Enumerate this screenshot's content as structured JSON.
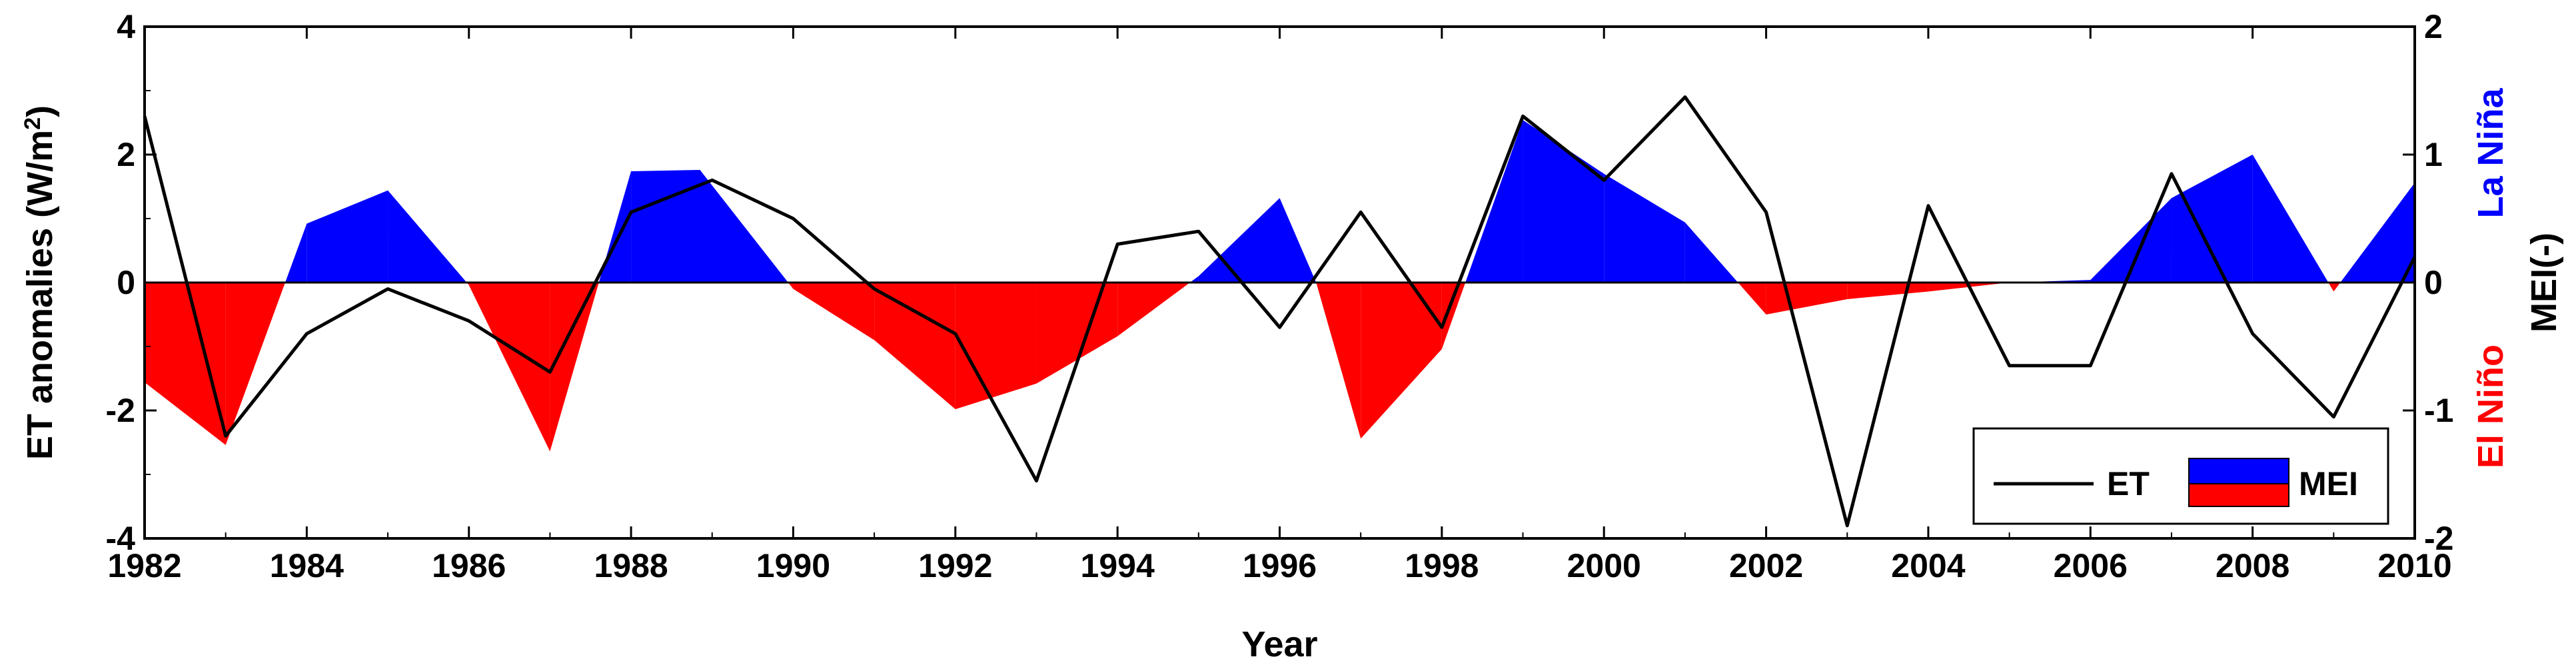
{
  "chart_data": {
    "type": "area",
    "xlabel": "Year",
    "ylabel_left_base": "ET anomalies (W/m",
    "ylabel_left_sup": "2",
    "ylabel_left_end": ")",
    "ylabel_right": "MEI(-)",
    "right_side_labels": {
      "la_nina": "La Niña",
      "el_nino": "El Niño"
    },
    "xlim": [
      1982,
      2010
    ],
    "ylim_left": [
      -4,
      4
    ],
    "ylim_right": [
      -2,
      2
    ],
    "x_ticks": [
      "1982",
      "1984",
      "1986",
      "1988",
      "1990",
      "1992",
      "1994",
      "1996",
      "1998",
      "2000",
      "2002",
      "2004",
      "2006",
      "2008",
      "2010"
    ],
    "y_left_ticks": [
      "4",
      "2",
      "0",
      "-2",
      "-4"
    ],
    "y_right_ticks": [
      "2",
      "1",
      "0",
      "-1",
      "-2"
    ],
    "series": [
      {
        "name": "ET",
        "axis": "left",
        "color": "#000000",
        "x": [
          1982,
          1983,
          1984,
          1985,
          1986,
          1987,
          1988,
          1989,
          1990,
          1991,
          1992,
          1993,
          1994,
          1995,
          1996,
          1997,
          1998,
          1999,
          2000,
          2001,
          2002,
          2003,
          2004,
          2005,
          2006,
          2007,
          2008,
          2009,
          2010
        ],
        "values": [
          2.6,
          -2.4,
          -0.8,
          -0.1,
          -0.6,
          -1.4,
          1.1,
          1.6,
          1.0,
          -0.1,
          -0.8,
          -3.1,
          0.6,
          0.8,
          -0.7,
          1.1,
          -0.7,
          2.6,
          1.6,
          2.9,
          1.1,
          -3.8,
          1.2,
          -1.3,
          -1.3,
          1.7,
          -0.8,
          -2.1,
          0.4
        ]
      },
      {
        "name": "MEI",
        "axis": "right",
        "color_positive": "#0000ff",
        "color_negative": "#ff0000",
        "x": [
          1982,
          1983,
          1984,
          1985,
          1986,
          1987,
          1988,
          1988.85,
          1990,
          1991,
          1992,
          1993,
          1994,
          1995,
          1996,
          1996.45,
          1997,
          1998,
          1999,
          2000,
          2001,
          2002,
          2003,
          2004,
          2005,
          2006,
          2007,
          2008,
          2009,
          2010
        ],
        "values": [
          -0.78,
          -1.27,
          0.46,
          0.72,
          -0.02,
          -1.32,
          0.87,
          0.88,
          -0.05,
          -0.45,
          -0.99,
          -0.79,
          -0.42,
          0.05,
          0.66,
          0.0,
          -1.22,
          -0.52,
          1.27,
          0.85,
          0.47,
          -0.25,
          -0.13,
          -0.07,
          0.0,
          0.02,
          0.66,
          1.0,
          -0.07,
          0.78
        ]
      }
    ],
    "legend": {
      "position": "bottom-right",
      "et_label": "ET",
      "mei_label": "MEI"
    }
  }
}
